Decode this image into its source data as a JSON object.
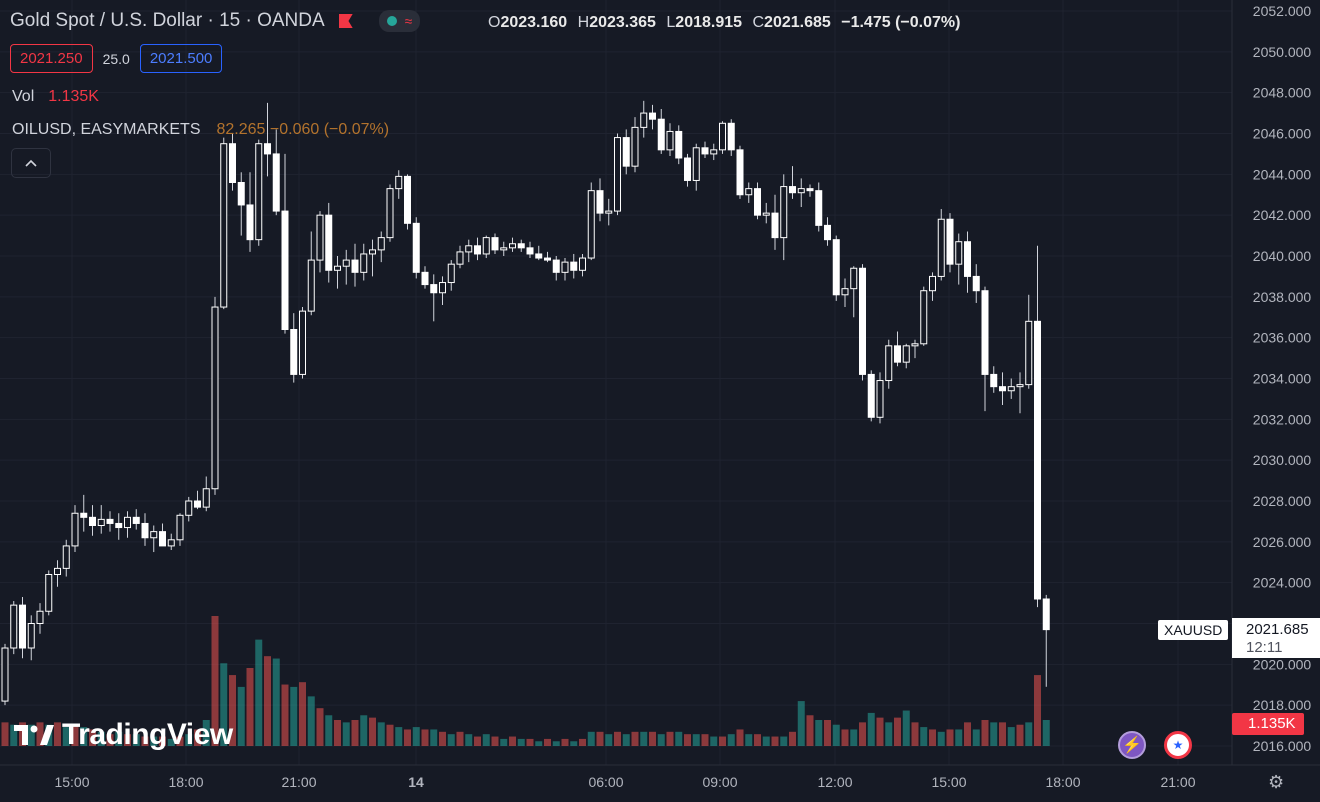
{
  "header": {
    "title": "Gold Spot / U.S. Dollar · 15 · OANDA",
    "ohlc": {
      "o_label": "O",
      "o": "2023.160",
      "h_label": "H",
      "h": "2023.365",
      "l_label": "L",
      "l": "2018.915",
      "c_label": "C",
      "c": "2021.685",
      "change": "−1.475 (−0.07%)"
    }
  },
  "trade": {
    "sell": "2021.250",
    "spread": "25.0",
    "buy": "2021.500"
  },
  "volume_legend": {
    "label": "Vol",
    "value": "1.135K"
  },
  "overlay_legend": {
    "label": "OILUSD, EASYMARKETS",
    "value": "82.265 −0.060 (−0.07%)"
  },
  "brand": "TradingView",
  "tags": {
    "symbol": "XAUUSD",
    "price": "2021.685",
    "countdown": "12:11",
    "volume": "1.135K"
  },
  "icons": {
    "collapse": "chevron-up-icon",
    "alert": "lightning-icon",
    "flag": "us-flag-icon",
    "settings": "gear-icon"
  },
  "colors": {
    "background": "#161a25",
    "up_candle": "#ffffff",
    "down_candle": "#ffffff",
    "up_volume": "#26a69a",
    "down_volume": "#ef5350",
    "grid": "#232632"
  },
  "chart_data": {
    "type": "candlestick",
    "title": "Gold Spot / U.S. Dollar · 15 · OANDA",
    "y_ticks": [
      "2052.000",
      "2050.000",
      "2048.000",
      "2046.000",
      "2044.000",
      "2042.000",
      "2040.000",
      "2038.000",
      "2036.000",
      "2034.000",
      "2032.000",
      "2030.000",
      "2028.000",
      "2026.000",
      "2024.000",
      "2022.000",
      "2020.000",
      "2018.000",
      "2016.000"
    ],
    "ylim": [
      2015.3,
      2052.5
    ],
    "x_ticks": [
      "15:00",
      "18:00",
      "21:00",
      "14",
      "06:00",
      "09:00",
      "12:00",
      "15:00",
      "18:00",
      "21:00"
    ],
    "candles": [
      [
        2018.2,
        2021.0,
        2018.0,
        2020.8
      ],
      [
        2020.8,
        2023.1,
        2020.5,
        2022.9
      ],
      [
        2022.9,
        2023.3,
        2020.3,
        2020.8
      ],
      [
        2020.8,
        2022.4,
        2020.2,
        2022.0
      ],
      [
        2022.0,
        2023.0,
        2021.5,
        2022.6
      ],
      [
        2022.6,
        2024.6,
        2022.4,
        2024.4
      ],
      [
        2024.4,
        2025.1,
        2023.8,
        2024.7
      ],
      [
        2024.7,
        2026.1,
        2024.3,
        2025.8
      ],
      [
        2025.8,
        2027.8,
        2025.5,
        2027.4
      ],
      [
        2027.4,
        2028.3,
        2026.5,
        2027.2
      ],
      [
        2027.2,
        2027.8,
        2026.3,
        2026.8
      ],
      [
        2026.8,
        2027.8,
        2026.4,
        2027.1
      ],
      [
        2027.1,
        2027.5,
        2026.5,
        2026.9
      ],
      [
        2026.9,
        2027.4,
        2026.1,
        2026.7
      ],
      [
        2026.7,
        2027.5,
        2026.2,
        2027.2
      ],
      [
        2027.2,
        2027.6,
        2026.6,
        2026.9
      ],
      [
        2026.9,
        2027.4,
        2025.8,
        2026.2
      ],
      [
        2026.2,
        2026.8,
        2025.5,
        2026.5
      ],
      [
        2026.5,
        2026.9,
        2025.9,
        2025.8
      ],
      [
        2025.8,
        2026.4,
        2025.6,
        2026.1
      ],
      [
        2026.1,
        2027.4,
        2025.8,
        2027.3
      ],
      [
        2027.3,
        2028.2,
        2027.0,
        2028.0
      ],
      [
        2028.0,
        2028.5,
        2027.6,
        2027.7
      ],
      [
        2027.7,
        2029.2,
        2027.5,
        2028.6
      ],
      [
        2028.6,
        2038.0,
        2028.3,
        2037.5
      ],
      [
        2037.5,
        2045.8,
        2037.4,
        2045.5
      ],
      [
        2045.5,
        2046.0,
        2043.2,
        2043.6
      ],
      [
        2043.6,
        2044.1,
        2041.0,
        2042.5
      ],
      [
        2042.5,
        2044.1,
        2040.2,
        2040.8
      ],
      [
        2040.8,
        2045.7,
        2040.5,
        2045.5
      ],
      [
        2045.5,
        2047.5,
        2043.9,
        2045.0
      ],
      [
        2045.0,
        2046.2,
        2042.0,
        2042.2
      ],
      [
        2042.2,
        2045.0,
        2036.2,
        2036.4
      ],
      [
        2036.4,
        2037.2,
        2033.8,
        2034.2
      ],
      [
        2034.2,
        2037.5,
        2034.0,
        2037.3
      ],
      [
        2037.3,
        2041.2,
        2037.1,
        2039.8
      ],
      [
        2039.8,
        2042.2,
        2039.2,
        2042.0
      ],
      [
        2042.0,
        2042.6,
        2038.7,
        2039.3
      ],
      [
        2039.3,
        2040.0,
        2038.4,
        2039.5
      ],
      [
        2039.5,
        2040.3,
        2038.6,
        2039.8
      ],
      [
        2039.8,
        2040.6,
        2038.5,
        2039.2
      ],
      [
        2039.2,
        2040.6,
        2038.8,
        2040.1
      ],
      [
        2040.1,
        2040.8,
        2039.0,
        2040.3
      ],
      [
        2040.3,
        2041.2,
        2039.7,
        2040.9
      ],
      [
        2040.9,
        2043.5,
        2040.7,
        2043.3
      ],
      [
        2043.3,
        2044.2,
        2042.8,
        2043.9
      ],
      [
        2043.9,
        2044.0,
        2041.3,
        2041.6
      ],
      [
        2041.6,
        2041.9,
        2038.9,
        2039.2
      ],
      [
        2039.2,
        2039.5,
        2038.4,
        2038.6
      ],
      [
        2038.6,
        2039.1,
        2036.8,
        2038.2
      ],
      [
        2038.2,
        2039.0,
        2037.6,
        2038.7
      ],
      [
        2038.7,
        2039.8,
        2038.3,
        2039.6
      ],
      [
        2039.6,
        2040.5,
        2039.4,
        2040.2
      ],
      [
        2040.2,
        2040.8,
        2039.7,
        2040.5
      ],
      [
        2040.5,
        2040.9,
        2039.8,
        2040.1
      ],
      [
        2040.1,
        2041.0,
        2039.9,
        2040.9
      ],
      [
        2040.9,
        2041.1,
        2040.1,
        2040.3
      ],
      [
        2040.3,
        2040.7,
        2040.0,
        2040.4
      ],
      [
        2040.4,
        2040.9,
        2040.2,
        2040.6
      ],
      [
        2040.6,
        2040.8,
        2040.2,
        2040.4
      ],
      [
        2040.4,
        2040.7,
        2039.9,
        2040.1
      ],
      [
        2040.1,
        2040.5,
        2039.8,
        2039.9
      ],
      [
        2039.9,
        2040.2,
        2039.7,
        2039.8
      ],
      [
        2039.8,
        2040.0,
        2038.8,
        2039.2
      ],
      [
        2039.2,
        2039.9,
        2038.8,
        2039.7
      ],
      [
        2039.7,
        2040.1,
        2038.9,
        2039.3
      ],
      [
        2039.3,
        2040.1,
        2039.0,
        2039.9
      ],
      [
        2039.9,
        2043.6,
        2039.8,
        2043.2
      ],
      [
        2043.2,
        2043.8,
        2041.7,
        2042.1
      ],
      [
        2042.1,
        2042.8,
        2041.5,
        2042.2
      ],
      [
        2042.2,
        2046.0,
        2042.0,
        2045.8
      ],
      [
        2045.8,
        2046.2,
        2044.0,
        2044.4
      ],
      [
        2044.4,
        2046.8,
        2044.1,
        2046.3
      ],
      [
        2046.3,
        2047.6,
        2045.8,
        2047.0
      ],
      [
        2047.0,
        2047.4,
        2046.2,
        2046.7
      ],
      [
        2046.7,
        2047.2,
        2045.0,
        2045.2
      ],
      [
        2045.2,
        2046.5,
        2044.9,
        2046.1
      ],
      [
        2046.1,
        2046.4,
        2044.5,
        2044.8
      ],
      [
        2044.8,
        2045.0,
        2043.4,
        2043.7
      ],
      [
        2043.7,
        2045.5,
        2043.2,
        2045.3
      ],
      [
        2045.3,
        2045.6,
        2044.8,
        2045.0
      ],
      [
        2045.0,
        2045.5,
        2044.7,
        2045.2
      ],
      [
        2045.2,
        2046.6,
        2045.0,
        2046.5
      ],
      [
        2046.5,
        2046.7,
        2044.9,
        2045.2
      ],
      [
        2045.2,
        2045.4,
        2042.8,
        2043.0
      ],
      [
        2043.0,
        2043.6,
        2042.6,
        2043.3
      ],
      [
        2043.3,
        2043.6,
        2041.8,
        2042.0
      ],
      [
        2042.0,
        2042.6,
        2041.6,
        2042.1
      ],
      [
        2042.1,
        2043.0,
        2040.3,
        2040.9
      ],
      [
        2040.9,
        2044.0,
        2039.8,
        2043.4
      ],
      [
        2043.4,
        2044.4,
        2042.8,
        2043.1
      ],
      [
        2043.1,
        2043.8,
        2042.4,
        2043.3
      ],
      [
        2043.3,
        2043.5,
        2042.9,
        2043.2
      ],
      [
        2043.2,
        2043.6,
        2041.2,
        2041.5
      ],
      [
        2041.5,
        2041.9,
        2040.5,
        2040.8
      ],
      [
        2040.8,
        2041.0,
        2037.8,
        2038.1
      ],
      [
        2038.1,
        2038.9,
        2037.5,
        2038.4
      ],
      [
        2038.4,
        2039.5,
        2037.0,
        2039.4
      ],
      [
        2039.4,
        2039.6,
        2033.9,
        2034.2
      ],
      [
        2034.2,
        2034.4,
        2031.9,
        2032.1
      ],
      [
        2032.1,
        2034.3,
        2031.8,
        2033.9
      ],
      [
        2033.9,
        2035.9,
        2033.5,
        2035.6
      ],
      [
        2035.6,
        2036.3,
        2034.6,
        2034.8
      ],
      [
        2034.8,
        2035.7,
        2034.5,
        2035.6
      ],
      [
        2035.6,
        2035.9,
        2035.0,
        2035.7
      ],
      [
        2035.7,
        2038.5,
        2035.6,
        2038.3
      ],
      [
        2038.3,
        2039.2,
        2037.8,
        2039.0
      ],
      [
        2039.0,
        2042.3,
        2038.8,
        2041.8
      ],
      [
        2041.8,
        2042.1,
        2039.2,
        2039.6
      ],
      [
        2039.6,
        2041.1,
        2038.6,
        2040.7
      ],
      [
        2040.7,
        2041.2,
        2038.2,
        2039.0
      ],
      [
        2039.0,
        2039.6,
        2037.7,
        2038.3
      ],
      [
        2038.3,
        2038.5,
        2032.4,
        2034.2
      ],
      [
        2034.2,
        2034.6,
        2033.3,
        2033.6
      ],
      [
        2033.6,
        2034.3,
        2032.7,
        2033.4
      ],
      [
        2033.4,
        2034.0,
        2033.0,
        2033.6
      ],
      [
        2033.6,
        2034.3,
        2032.3,
        2033.7
      ],
      [
        2033.7,
        2038.1,
        2033.5,
        2036.8
      ],
      [
        2036.8,
        2040.5,
        2022.8,
        2023.2
      ],
      [
        2023.2,
        2023.4,
        2018.9,
        2021.7
      ]
    ],
    "volumes": [
      [
        10,
        1
      ],
      [
        9,
        0
      ],
      [
        10,
        1
      ],
      [
        9,
        0
      ],
      [
        10,
        1
      ],
      [
        9,
        0
      ],
      [
        10,
        1
      ],
      [
        8,
        0
      ],
      [
        9,
        1
      ],
      [
        8,
        0
      ],
      [
        7,
        1
      ],
      [
        6,
        0
      ],
      [
        5,
        1
      ],
      [
        6,
        0
      ],
      [
        5,
        1
      ],
      [
        5,
        0
      ],
      [
        4,
        1
      ],
      [
        4,
        0
      ],
      [
        4,
        1
      ],
      [
        3,
        0
      ],
      [
        4,
        1
      ],
      [
        5,
        0
      ],
      [
        7,
        1
      ],
      [
        11,
        0
      ],
      [
        55,
        1
      ],
      [
        35,
        0
      ],
      [
        30,
        1
      ],
      [
        25,
        0
      ],
      [
        33,
        1
      ],
      [
        45,
        0
      ],
      [
        38,
        1
      ],
      [
        37,
        0
      ],
      [
        26,
        1
      ],
      [
        25,
        0
      ],
      [
        27,
        1
      ],
      [
        21,
        0
      ],
      [
        16,
        1
      ],
      [
        13,
        0
      ],
      [
        11,
        1
      ],
      [
        10,
        0
      ],
      [
        11,
        1
      ],
      [
        13,
        0
      ],
      [
        12,
        1
      ],
      [
        10,
        0
      ],
      [
        9,
        1
      ],
      [
        8,
        0
      ],
      [
        7,
        1
      ],
      [
        8,
        0
      ],
      [
        7,
        1
      ],
      [
        7,
        0
      ],
      [
        6,
        1
      ],
      [
        5,
        0
      ],
      [
        6,
        1
      ],
      [
        5,
        0
      ],
      [
        4,
        1
      ],
      [
        5,
        0
      ],
      [
        4,
        1
      ],
      [
        3,
        0
      ],
      [
        4,
        1
      ],
      [
        3,
        0
      ],
      [
        3,
        1
      ],
      [
        2,
        0
      ],
      [
        3,
        1
      ],
      [
        2,
        0
      ],
      [
        3,
        1
      ],
      [
        2,
        0
      ],
      [
        3,
        1
      ],
      [
        6,
        0
      ],
      [
        6,
        1
      ],
      [
        5,
        0
      ],
      [
        6,
        1
      ],
      [
        5,
        0
      ],
      [
        6,
        1
      ],
      [
        6,
        0
      ],
      [
        6,
        1
      ],
      [
        5,
        0
      ],
      [
        6,
        1
      ],
      [
        6,
        0
      ],
      [
        5,
        1
      ],
      [
        5,
        0
      ],
      [
        5,
        1
      ],
      [
        4,
        0
      ],
      [
        4,
        1
      ],
      [
        5,
        0
      ],
      [
        7,
        1
      ],
      [
        5,
        0
      ],
      [
        5,
        1
      ],
      [
        4,
        0
      ],
      [
        4,
        1
      ],
      [
        4,
        0
      ],
      [
        6,
        1
      ],
      [
        19,
        0
      ],
      [
        13,
        1
      ],
      [
        11,
        0
      ],
      [
        11,
        1
      ],
      [
        9,
        0
      ],
      [
        7,
        1
      ],
      [
        7,
        0
      ],
      [
        10,
        1
      ],
      [
        14,
        0
      ],
      [
        12,
        1
      ],
      [
        10,
        0
      ],
      [
        12,
        1
      ],
      [
        15,
        0
      ],
      [
        10,
        1
      ],
      [
        8,
        0
      ],
      [
        7,
        1
      ],
      [
        6,
        0
      ],
      [
        7,
        1
      ],
      [
        7,
        0
      ],
      [
        10,
        1
      ],
      [
        7,
        0
      ],
      [
        11,
        1
      ],
      [
        10,
        0
      ],
      [
        10,
        1
      ],
      [
        8,
        0
      ],
      [
        9,
        1
      ],
      [
        10,
        0
      ],
      [
        30,
        1
      ],
      [
        11,
        0
      ]
    ],
    "overlay_series": {
      "name": "OILUSD, EASYMARKETS",
      "values": []
    }
  }
}
